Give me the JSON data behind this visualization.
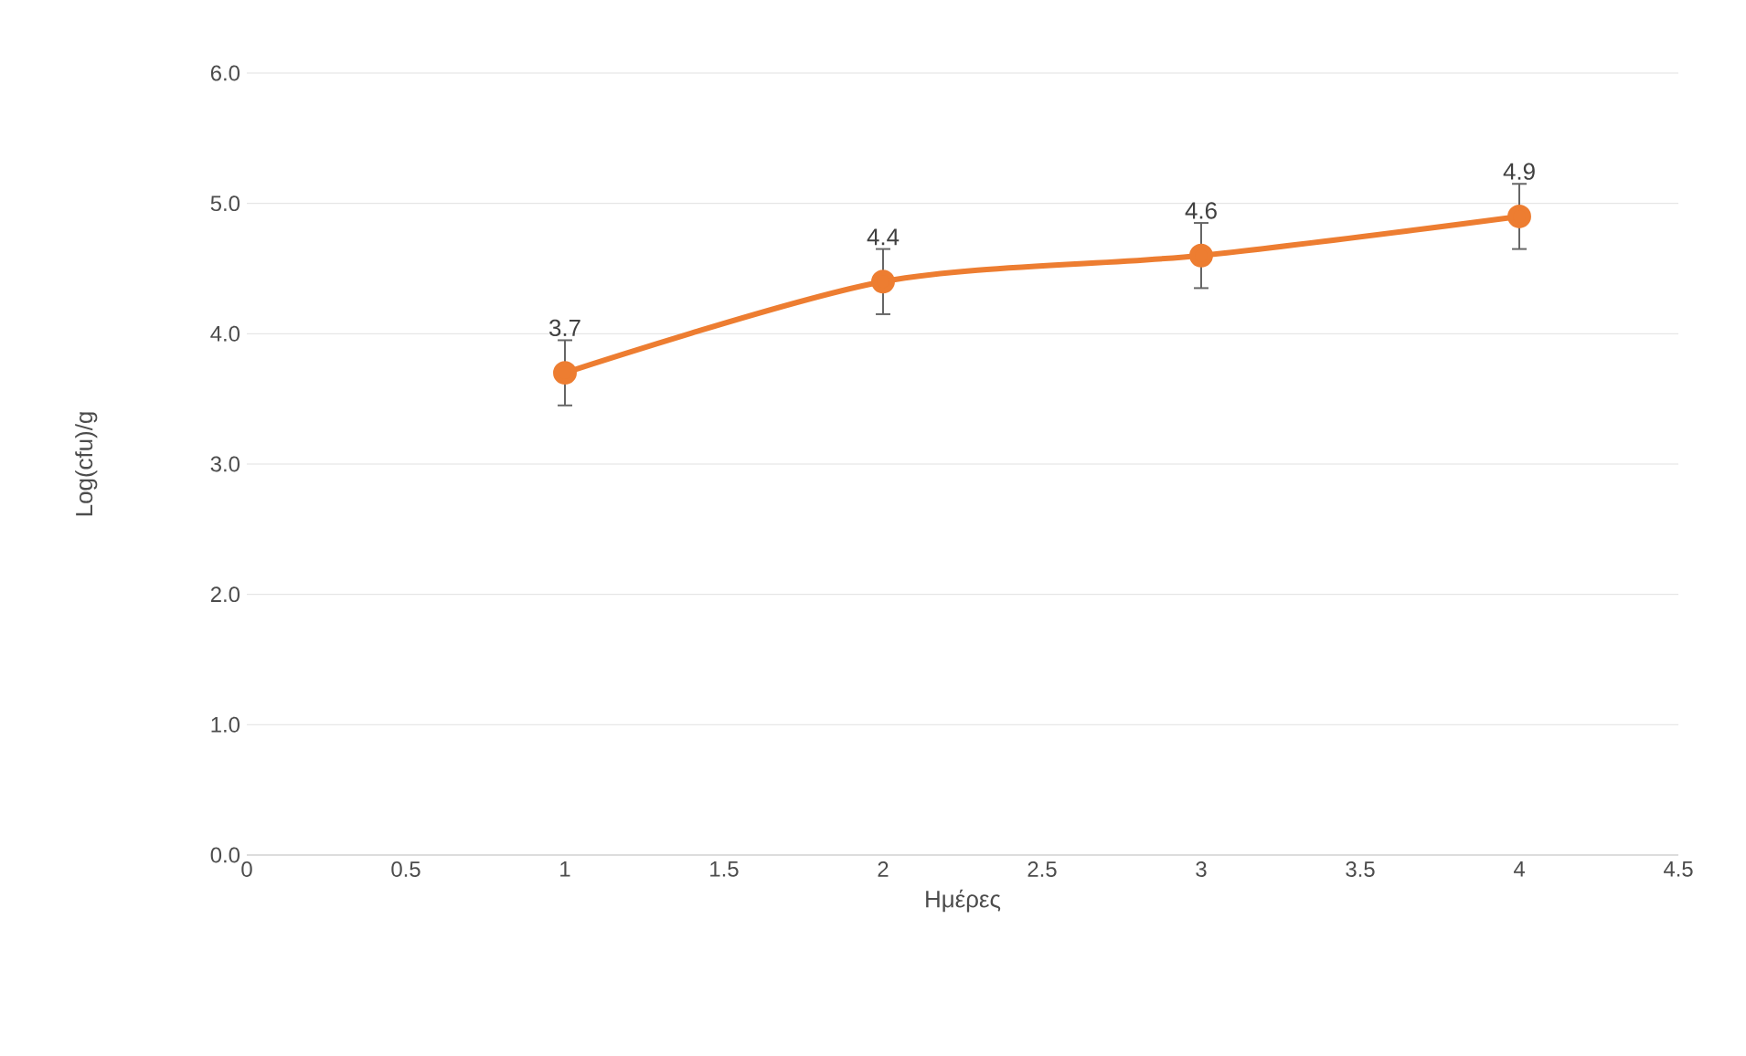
{
  "chart_data": {
    "type": "line",
    "xlabel": "Ημέρες",
    "ylabel": "Log(cfu)/g",
    "x": [
      1,
      2,
      3,
      4
    ],
    "values": [
      3.7,
      4.4,
      4.6,
      4.9
    ],
    "errors": [
      0.25,
      0.25,
      0.25,
      0.25
    ],
    "color": "#ed7d31",
    "marker": "circle",
    "line_style": "solid",
    "data_labels": true,
    "grid": "y",
    "xlim": [
      0,
      4.5
    ],
    "xticks": [
      0,
      0.5,
      1,
      1.5,
      2,
      2.5,
      3,
      3.5,
      4,
      4.5
    ],
    "ylim": [
      0,
      6
    ],
    "yticks": [
      {
        "value": 0,
        "label": "0.0"
      },
      {
        "value": 1,
        "label": "1.0"
      },
      {
        "value": 2,
        "label": "2.0"
      },
      {
        "value": 3,
        "label": "3.0"
      },
      {
        "value": 4,
        "label": "4.0"
      },
      {
        "value": 5,
        "label": "5.0"
      },
      {
        "value": 6,
        "label": "6.0"
      }
    ]
  }
}
